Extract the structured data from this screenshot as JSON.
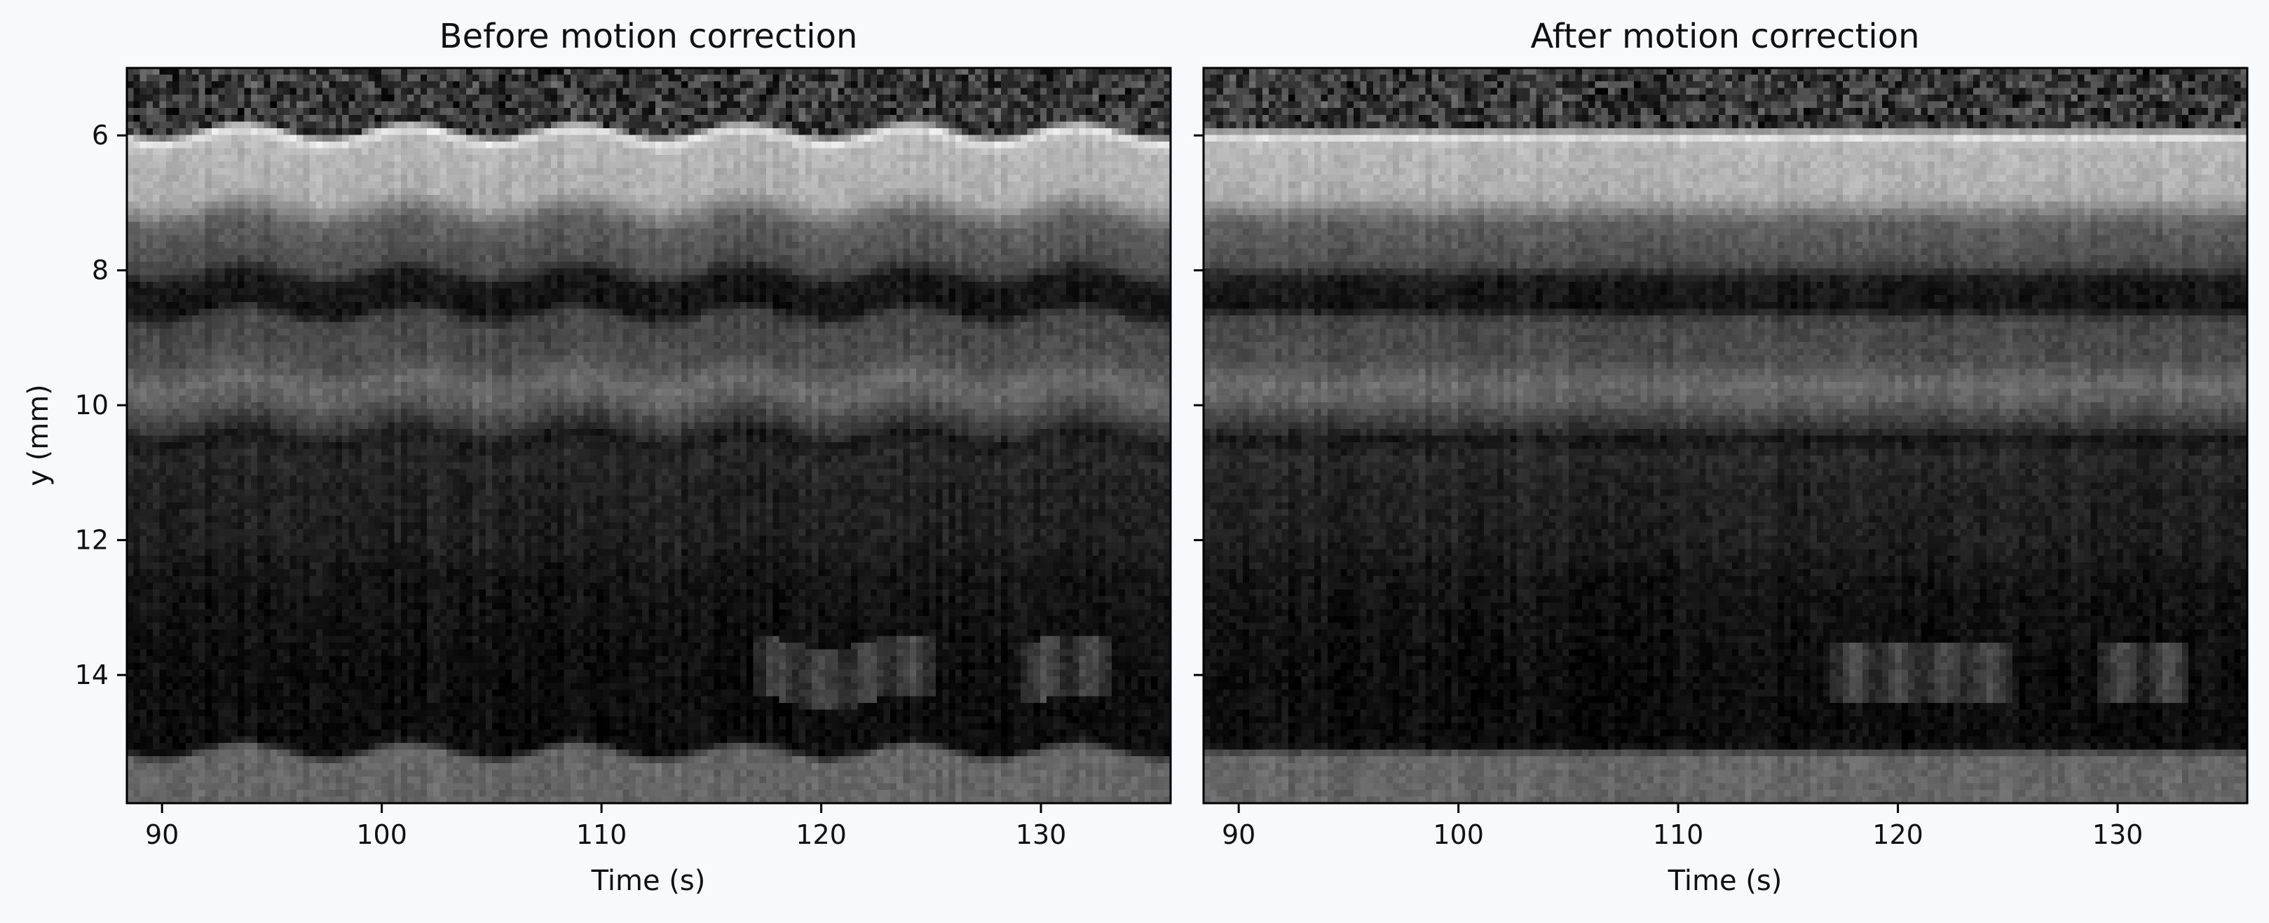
{
  "chart_data": [
    {
      "type": "heatmap",
      "title": "Before motion correction",
      "xlabel": "Time (s)",
      "ylabel": "y (mm)",
      "xlim": [
        88.4,
        135.9
      ],
      "ylim": [
        15.9,
        5.0
      ],
      "xticks": [
        90,
        100,
        110,
        120,
        130
      ],
      "yticks": [
        6,
        8,
        10,
        12,
        14
      ],
      "colormap": "gray",
      "motion_artifact": "wavy",
      "bright_bursts": [
        {
          "from": 116.8,
          "to": 125.1,
          "y_from": 13.5,
          "y_to": 14.4
        },
        {
          "from": 129.0,
          "to": 133.2,
          "y_from": 13.5,
          "y_to": 14.4
        }
      ]
    },
    {
      "type": "heatmap",
      "title": "After motion correction",
      "xlabel": "Time (s)",
      "ylabel": "",
      "xlim": [
        88.4,
        135.9
      ],
      "ylim": [
        15.9,
        5.0
      ],
      "xticks": [
        90,
        100,
        110,
        120,
        130
      ],
      "yticks": [
        6,
        8,
        10,
        12,
        14
      ],
      "colormap": "gray",
      "motion_artifact": "none",
      "bright_bursts": [
        {
          "from": 116.8,
          "to": 125.1,
          "y_from": 13.5,
          "y_to": 14.4
        },
        {
          "from": 129.0,
          "to": 133.2,
          "y_from": 13.5,
          "y_to": 14.4
        }
      ]
    }
  ]
}
